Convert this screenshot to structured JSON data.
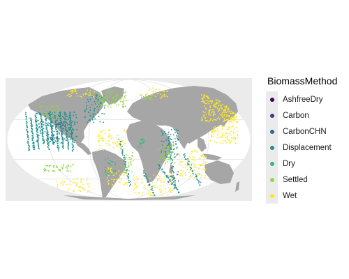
{
  "legend": {
    "title": "BiomassMethod",
    "items": [
      {
        "label": "AshfreeDry",
        "color": "#440154"
      },
      {
        "label": "Carbon",
        "color": "#443a83"
      },
      {
        "label": "CarbonCHN",
        "color": "#31688e"
      },
      {
        "label": "Displacement",
        "color": "#21908d"
      },
      {
        "label": "Dry",
        "color": "#35b779"
      },
      {
        "label": "Settled",
        "color": "#8fd744"
      },
      {
        "label": "Wet",
        "color": "#fde725"
      }
    ]
  },
  "map": {
    "projection": "Mollweide",
    "panel_background": "#ebebeb",
    "land_color": "#a6a6a6",
    "ocean_color": "#ffffff",
    "graticule_color": "#e0e0e0"
  }
}
